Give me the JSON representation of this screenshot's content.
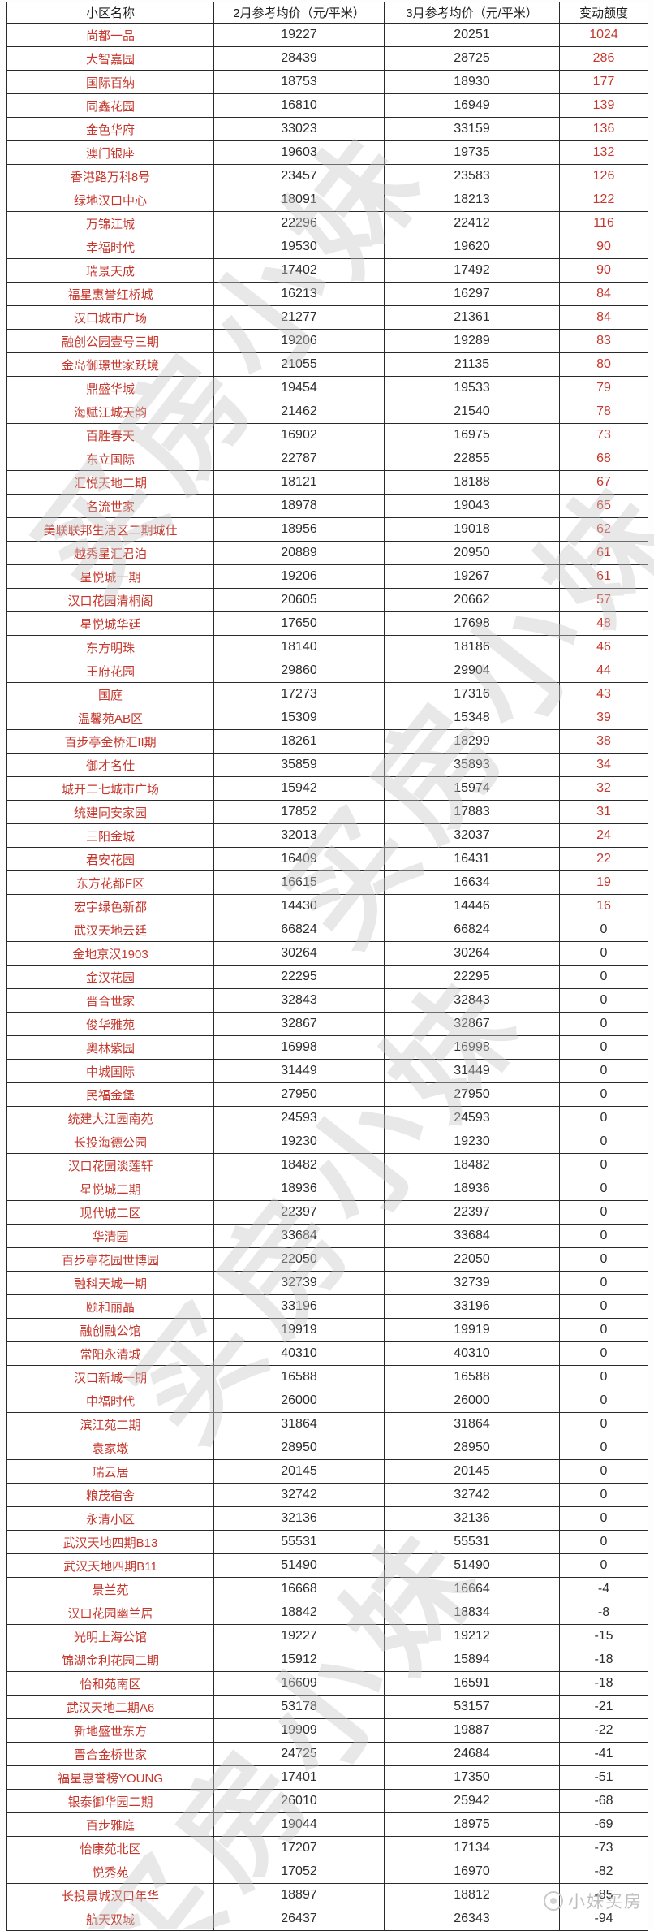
{
  "table": {
    "headers": [
      "小区名称",
      "2月参考均价（元/平米）",
      "3月参考均价（元/平米）",
      "变动额度"
    ],
    "rows": [
      {
        "name": "尚都一品",
        "feb": 19227,
        "mar": 20251,
        "change": 1024
      },
      {
        "name": "大智嘉园",
        "feb": 28439,
        "mar": 28725,
        "change": 286
      },
      {
        "name": "国际百纳",
        "feb": 18753,
        "mar": 18930,
        "change": 177
      },
      {
        "name": "同鑫花园",
        "feb": 16810,
        "mar": 16949,
        "change": 139
      },
      {
        "name": "金色华府",
        "feb": 33023,
        "mar": 33159,
        "change": 136
      },
      {
        "name": "澳门银座",
        "feb": 19603,
        "mar": 19735,
        "change": 132
      },
      {
        "name": "香港路万科8号",
        "feb": 23457,
        "mar": 23583,
        "change": 126
      },
      {
        "name": "绿地汉口中心",
        "feb": 18091,
        "mar": 18213,
        "change": 122
      },
      {
        "name": "万锦江城",
        "feb": 22296,
        "mar": 22412,
        "change": 116
      },
      {
        "name": "幸福时代",
        "feb": 19530,
        "mar": 19620,
        "change": 90
      },
      {
        "name": "瑞景天成",
        "feb": 17402,
        "mar": 17492,
        "change": 90
      },
      {
        "name": "福星惠誉红桥城",
        "feb": 16213,
        "mar": 16297,
        "change": 84
      },
      {
        "name": "汉口城市广场",
        "feb": 21277,
        "mar": 21361,
        "change": 84
      },
      {
        "name": "融创公园壹号三期",
        "feb": 19206,
        "mar": 19289,
        "change": 83
      },
      {
        "name": "金岛御璟世家跃境",
        "feb": 21055,
        "mar": 21135,
        "change": 80
      },
      {
        "name": "鼎盛华城",
        "feb": 19454,
        "mar": 19533,
        "change": 79
      },
      {
        "name": "海赋江城天韵",
        "feb": 21462,
        "mar": 21540,
        "change": 78
      },
      {
        "name": "百胜春天",
        "feb": 16902,
        "mar": 16975,
        "change": 73
      },
      {
        "name": "东立国际",
        "feb": 22787,
        "mar": 22855,
        "change": 68
      },
      {
        "name": "汇悦天地二期",
        "feb": 18121,
        "mar": 18188,
        "change": 67
      },
      {
        "name": "名流世家",
        "feb": 18978,
        "mar": 19043,
        "change": 65
      },
      {
        "name": "美联联邦生活区二期城仕",
        "feb": 18956,
        "mar": 19018,
        "change": 62
      },
      {
        "name": "越秀星汇君泊",
        "feb": 20889,
        "mar": 20950,
        "change": 61
      },
      {
        "name": "星悦城一期",
        "feb": 19206,
        "mar": 19267,
        "change": 61
      },
      {
        "name": "汉口花园清桐阁",
        "feb": 20605,
        "mar": 20662,
        "change": 57
      },
      {
        "name": "星悦城华廷",
        "feb": 17650,
        "mar": 17698,
        "change": 48
      },
      {
        "name": "东方明珠",
        "feb": 18140,
        "mar": 18186,
        "change": 46
      },
      {
        "name": "王府花园",
        "feb": 29860,
        "mar": 29904,
        "change": 44
      },
      {
        "name": "国庭",
        "feb": 17273,
        "mar": 17316,
        "change": 43
      },
      {
        "name": "温馨苑AB区",
        "feb": 15309,
        "mar": 15348,
        "change": 39
      },
      {
        "name": "百步亭金桥汇II期",
        "feb": 18261,
        "mar": 18299,
        "change": 38
      },
      {
        "name": "御才名仕",
        "feb": 35859,
        "mar": 35893,
        "change": 34
      },
      {
        "name": "城开二七城市广场",
        "feb": 15942,
        "mar": 15974,
        "change": 32
      },
      {
        "name": "统建同安家园",
        "feb": 17852,
        "mar": 17883,
        "change": 31
      },
      {
        "name": "三阳金城",
        "feb": 32013,
        "mar": 32037,
        "change": 24
      },
      {
        "name": "君安花园",
        "feb": 16409,
        "mar": 16431,
        "change": 22
      },
      {
        "name": "东方花都F区",
        "feb": 16615,
        "mar": 16634,
        "change": 19
      },
      {
        "name": "宏宇绿色新都",
        "feb": 14430,
        "mar": 14446,
        "change": 16
      },
      {
        "name": "武汉天地云廷",
        "feb": 66824,
        "mar": 66824,
        "change": 0
      },
      {
        "name": "金地京汉1903",
        "feb": 30264,
        "mar": 30264,
        "change": 0
      },
      {
        "name": "金汉花园",
        "feb": 22295,
        "mar": 22295,
        "change": 0
      },
      {
        "name": "晋合世家",
        "feb": 32843,
        "mar": 32843,
        "change": 0
      },
      {
        "name": "俊华雅苑",
        "feb": 32867,
        "mar": 32867,
        "change": 0
      },
      {
        "name": "奥林紫园",
        "feb": 16998,
        "mar": 16998,
        "change": 0
      },
      {
        "name": "中城国际",
        "feb": 31449,
        "mar": 31449,
        "change": 0
      },
      {
        "name": "民福金堡",
        "feb": 27950,
        "mar": 27950,
        "change": 0
      },
      {
        "name": "统建大江园南苑",
        "feb": 24593,
        "mar": 24593,
        "change": 0
      },
      {
        "name": "长投海德公园",
        "feb": 19230,
        "mar": 19230,
        "change": 0
      },
      {
        "name": "汉口花园淡莲轩",
        "feb": 18482,
        "mar": 18482,
        "change": 0
      },
      {
        "name": "星悦城二期",
        "feb": 18936,
        "mar": 18936,
        "change": 0
      },
      {
        "name": "现代城二区",
        "feb": 22397,
        "mar": 22397,
        "change": 0
      },
      {
        "name": "华清园",
        "feb": 33684,
        "mar": 33684,
        "change": 0
      },
      {
        "name": "百步亭花园世博园",
        "feb": 22050,
        "mar": 22050,
        "change": 0
      },
      {
        "name": "融科天城一期",
        "feb": 32739,
        "mar": 32739,
        "change": 0
      },
      {
        "name": "颐和丽晶",
        "feb": 33196,
        "mar": 33196,
        "change": 0
      },
      {
        "name": "融创融公馆",
        "feb": 19919,
        "mar": 19919,
        "change": 0
      },
      {
        "name": "常阳永清城",
        "feb": 40310,
        "mar": 40310,
        "change": 0
      },
      {
        "name": "汉口新城一期",
        "feb": 16588,
        "mar": 16588,
        "change": 0
      },
      {
        "name": "中福时代",
        "feb": 26000,
        "mar": 26000,
        "change": 0
      },
      {
        "name": "滨江苑二期",
        "feb": 31864,
        "mar": 31864,
        "change": 0
      },
      {
        "name": "袁家墩",
        "feb": 28950,
        "mar": 28950,
        "change": 0
      },
      {
        "name": "瑞云居",
        "feb": 20145,
        "mar": 20145,
        "change": 0
      },
      {
        "name": "粮茂宿舍",
        "feb": 32742,
        "mar": 32742,
        "change": 0
      },
      {
        "name": "永清小区",
        "feb": 32136,
        "mar": 32136,
        "change": 0
      },
      {
        "name": "武汉天地四期B13",
        "feb": 55531,
        "mar": 55531,
        "change": 0
      },
      {
        "name": "武汉天地四期B11",
        "feb": 51490,
        "mar": 51490,
        "change": 0
      },
      {
        "name": "景兰苑",
        "feb": 16668,
        "mar": 16664,
        "change": -4
      },
      {
        "name": "汉口花园幽兰居",
        "feb": 18842,
        "mar": 18834,
        "change": -8
      },
      {
        "name": "光明上海公馆",
        "feb": 19227,
        "mar": 19212,
        "change": -15
      },
      {
        "name": "锦湖金利花园二期",
        "feb": 15912,
        "mar": 15894,
        "change": -18
      },
      {
        "name": "怡和苑南区",
        "feb": 16609,
        "mar": 16591,
        "change": -18
      },
      {
        "name": "武汉天地二期A6",
        "feb": 53178,
        "mar": 53157,
        "change": -21
      },
      {
        "name": "新地盛世东方",
        "feb": 19909,
        "mar": 19887,
        "change": -22
      },
      {
        "name": "晋合金桥世家",
        "feb": 24725,
        "mar": 24684,
        "change": -41
      },
      {
        "name": "福星惠誉榜YOUNG",
        "feb": 17401,
        "mar": 17350,
        "change": -51
      },
      {
        "name": "银泰御华园二期",
        "feb": 26010,
        "mar": 25942,
        "change": -68
      },
      {
        "name": "百步雅庭",
        "feb": 19044,
        "mar": 18975,
        "change": -69
      },
      {
        "name": "怡康苑北区",
        "feb": 17207,
        "mar": 17134,
        "change": -73
      },
      {
        "name": "悦秀苑",
        "feb": 17052,
        "mar": 16970,
        "change": -82
      },
      {
        "name": "长投景城汉口年华",
        "feb": 18897,
        "mar": 18812,
        "change": -85
      },
      {
        "name": "航天双城",
        "feb": 26437,
        "mar": 26343,
        "change": -94
      }
    ]
  },
  "watermark": {
    "diagonal_text": "买房小妹",
    "corner_text": "小妹买房"
  },
  "colors": {
    "name_text": "#c5372c",
    "positive_change": "#c5372c",
    "number_text": "#2d2d2d",
    "border": "#2a2a2a",
    "watermark": "#c9c9c9"
  }
}
